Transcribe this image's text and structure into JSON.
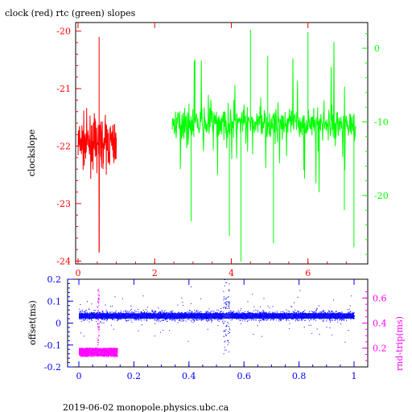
{
  "title": "clock (red) rtc (green) slopes",
  "footer": "2019-06-02  monopole.physics.ubc.ca",
  "colors": {
    "red": "#ff0000",
    "green": "#00ff00",
    "blue": "#0000ff",
    "magenta": "#ff00ff",
    "axis": "#000000"
  },
  "chart_data": [
    {
      "type": "line",
      "title": "clock (red) rtc (green) slopes",
      "ylabel": "clockslope",
      "xlim": [
        -0.2,
        7.6
      ],
      "xticks": [
        "0",
        "2",
        "4",
        "6"
      ],
      "left_axis": {
        "ylim": [
          -24.05,
          -19.85
        ],
        "ticks": [
          "-20",
          "-21",
          "-22",
          "-23",
          "-24"
        ]
      },
      "right_axis": {
        "ylim": [
          -29.3,
          3.5
        ],
        "ticks": [
          "0",
          "-10",
          "-20"
        ]
      },
      "series": [
        {
          "color": "red",
          "axis": "left",
          "x_range": [
            0.0,
            1.0
          ],
          "center": -21.95,
          "spread": 0.35,
          "outliers": [
            [
              0.55,
              -20.1
            ],
            [
              0.55,
              -23.85
            ]
          ]
        },
        {
          "color": "green",
          "axis": "right",
          "x_range": [
            2.45,
            7.25
          ],
          "center": -10.2,
          "spread": 1.6,
          "outliers": [
            [
              2.95,
              -23.5
            ],
            [
              3.05,
              -1.5
            ],
            [
              3.95,
              -25.5
            ],
            [
              4.25,
              -29.0
            ],
            [
              4.5,
              2.5
            ],
            [
              4.95,
              -1.0
            ],
            [
              5.1,
              -26.5
            ],
            [
              6.0,
              2.2
            ],
            [
              6.95,
              -22.0
            ],
            [
              7.2,
              -27.0
            ]
          ]
        }
      ]
    },
    {
      "type": "scatter",
      "left_axis": {
        "ylabel": "offset(ms)",
        "ylim": [
          -0.2,
          0.2
        ],
        "ticks": [
          "0.2",
          "0.1",
          "0",
          "-0.1",
          "-0.2"
        ]
      },
      "right_axis": {
        "ylabel": "rnd-trip(ms)",
        "ylim": [
          0.05,
          0.75
        ],
        "ticks": [
          "0.6",
          "0.4",
          "0.2"
        ]
      },
      "xlim": [
        -0.04,
        1.04
      ],
      "xticks": [
        "0",
        "0.2",
        "0.4",
        "0.6",
        "0.8",
        "1"
      ],
      "series": [
        {
          "color": "blue",
          "axis": "left",
          "x_range": [
            0.0,
            1.0
          ],
          "center": 0.035,
          "spread": 0.015,
          "features": [
            [
              0.07,
              -0.09
            ],
            [
              0.53,
              -0.2
            ],
            [
              0.54,
              0.15
            ]
          ]
        },
        {
          "color": "magenta",
          "axis": "right",
          "x_range": [
            0.0,
            0.14
          ],
          "center": 0.17,
          "spread": 0.05,
          "features": [
            [
              0.07,
              0.68
            ],
            [
              0.07,
              0.4
            ]
          ]
        }
      ]
    }
  ]
}
